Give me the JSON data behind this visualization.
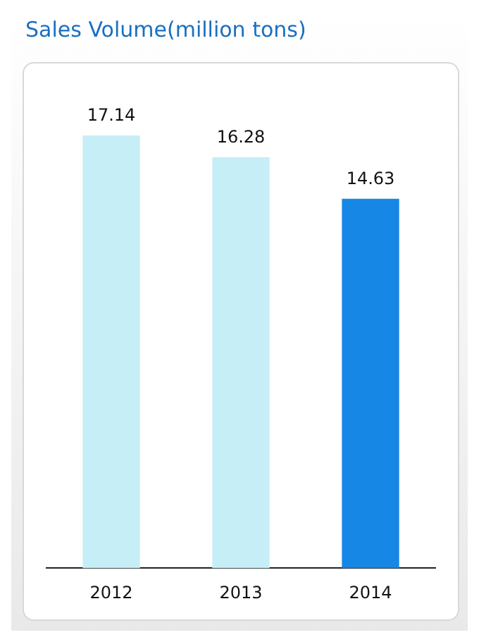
{
  "chart_data": {
    "type": "bar",
    "title": "Sales Volume(million tons)",
    "categories": [
      "2012",
      "2013",
      "2014"
    ],
    "values": [
      17.14,
      16.28,
      14.63
    ],
    "colors": [
      "#c6eef7",
      "#c6eef7",
      "#1787e5"
    ],
    "data_labels": true,
    "grid": false,
    "legend": false
  }
}
